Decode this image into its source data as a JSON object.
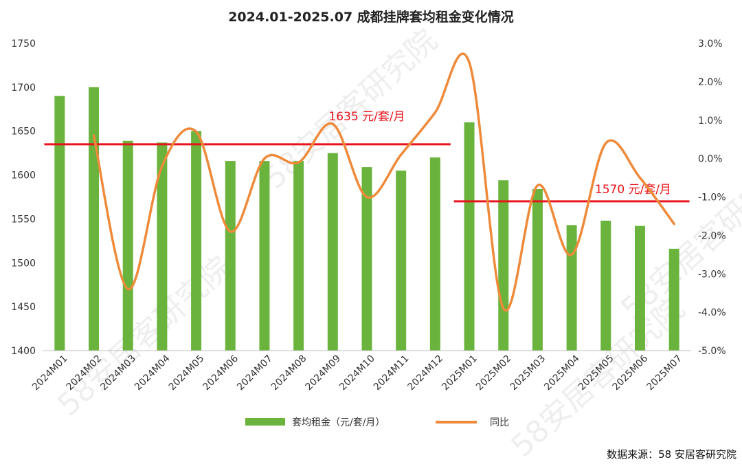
{
  "chart_data": {
    "type": "bar+line",
    "title": "2024.01-2025.07 成都挂牌套均租金变化情况",
    "categories": [
      "2024M01",
      "2024M02",
      "2024M03",
      "2024M04",
      "2024M05",
      "2024M06",
      "2024M07",
      "2024M08",
      "2024M09",
      "2024M10",
      "2024M11",
      "2024M12",
      "2025M01",
      "2025M02",
      "2025M03",
      "2025M04",
      "2025M05",
      "2025M06",
      "2025M07"
    ],
    "series": [
      {
        "name": "套均租金（元/套/月）",
        "type": "bar",
        "axis": "left",
        "color": "#6ab43e",
        "values": [
          1690,
          1700,
          1639,
          1637,
          1650,
          1616,
          1616,
          1616,
          1625,
          1609,
          1605,
          1620,
          1660,
          1594,
          1584,
          1543,
          1548,
          1542,
          1516
        ]
      },
      {
        "name": "同比",
        "type": "line",
        "axis": "right",
        "color": "#ee8a3a",
        "values": [
          null,
          0.6,
          -3.4,
          -0.2,
          0.7,
          -1.9,
          0.0,
          -0.1,
          0.9,
          -1.0,
          0.1,
          1.2,
          2.5,
          -3.9,
          -0.7,
          -2.5,
          0.4,
          -0.5,
          -1.7
        ]
      }
    ],
    "y_left": {
      "min": 1400,
      "max": 1750,
      "step": 50,
      "ticks": [
        "1750",
        "1700",
        "1650",
        "1600",
        "1550",
        "1500",
        "1450",
        "1400"
      ]
    },
    "y_right": {
      "min": -5.0,
      "max": 3.0,
      "step": 1.0,
      "ticks": [
        "3.0%",
        "2.0%",
        "1.0%",
        "0.0%",
        "-1.0%",
        "-2.0%",
        "-3.0%",
        "-4.0%",
        "-5.0%"
      ]
    },
    "reference_lines": [
      {
        "label": "1635 元/套/月",
        "value": 1635,
        "from": "2024M01",
        "to": "2024M12",
        "color": "#e8141b"
      },
      {
        "label": "1570 元/套/月",
        "value": 1570,
        "from": "2025M01",
        "to": "2025M07",
        "color": "#e8141b"
      }
    ],
    "legend_position": "bottom",
    "grid": false,
    "source": "数据来源：58 安居客研究院",
    "watermark": "58安居客研究院"
  }
}
